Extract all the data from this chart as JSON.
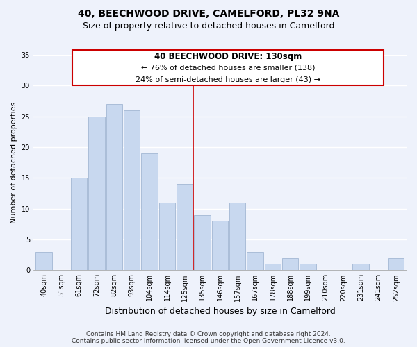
{
  "title": "40, BEECHWOOD DRIVE, CAMELFORD, PL32 9NA",
  "subtitle": "Size of property relative to detached houses in Camelford",
  "xlabel": "Distribution of detached houses by size in Camelford",
  "ylabel": "Number of detached properties",
  "bar_labels": [
    "40sqm",
    "51sqm",
    "61sqm",
    "72sqm",
    "82sqm",
    "93sqm",
    "104sqm",
    "114sqm",
    "125sqm",
    "135sqm",
    "146sqm",
    "157sqm",
    "167sqm",
    "178sqm",
    "188sqm",
    "199sqm",
    "210sqm",
    "220sqm",
    "231sqm",
    "241sqm",
    "252sqm"
  ],
  "bar_values": [
    3,
    0,
    15,
    25,
    27,
    26,
    19,
    11,
    14,
    9,
    8,
    11,
    3,
    1,
    2,
    1,
    0,
    0,
    1,
    0,
    2
  ],
  "bar_color": "#c8d8ef",
  "bar_edge_color": "#aabdd8",
  "ylim": [
    0,
    35
  ],
  "yticks": [
    0,
    5,
    10,
    15,
    20,
    25,
    30,
    35
  ],
  "vline_x": 8.5,
  "vline_color": "#cc0000",
  "annotation_title": "40 BEECHWOOD DRIVE: 130sqm",
  "annotation_line1": "← 76% of detached houses are smaller (138)",
  "annotation_line2": "24% of semi-detached houses are larger (43) →",
  "annotation_box_color": "#ffffff",
  "annotation_box_edge": "#cc0000",
  "footer1": "Contains HM Land Registry data © Crown copyright and database right 2024.",
  "footer2": "Contains public sector information licensed under the Open Government Licence v3.0.",
  "background_color": "#eef2fb",
  "grid_color": "#ffffff",
  "title_fontsize": 10,
  "subtitle_fontsize": 9,
  "xlabel_fontsize": 9,
  "ylabel_fontsize": 8,
  "tick_fontsize": 7,
  "annot_title_fontsize": 8.5,
  "annot_line_fontsize": 8,
  "footer_fontsize": 6.5
}
